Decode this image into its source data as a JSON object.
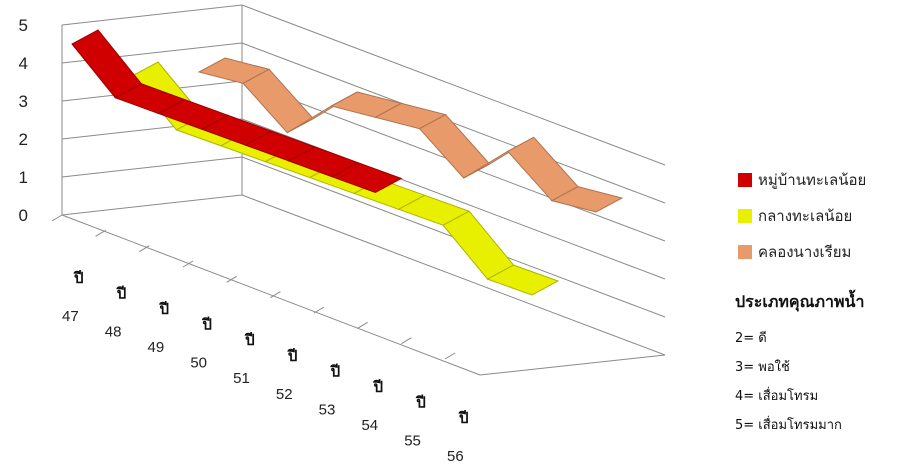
{
  "chart_data": {
    "type": "line",
    "variant": "3d-ribbon",
    "x_year_prefix": "ปี",
    "x": [
      "47",
      "48",
      "49",
      "50",
      "51",
      "52",
      "53",
      "54",
      "55",
      "56"
    ],
    "y_ticks": [
      "0",
      "1",
      "2",
      "3",
      "4",
      "5"
    ],
    "ylim": [
      0,
      5
    ],
    "grid": true,
    "legend_position": "right",
    "series": [
      {
        "name": "หมู่บ้านทะเลน้อย",
        "color": "#d00000",
        "values": [
          5,
          4,
          4,
          4,
          4,
          4,
          4,
          4,
          null,
          null
        ]
      },
      {
        "name": "กลางทะเลน้อย",
        "color": "#e8f000",
        "values": [
          4,
          3,
          3,
          3,
          3,
          3,
          3,
          3,
          2,
          2
        ]
      },
      {
        "name": "คลองนางเรียม",
        "color": "#e89a6a",
        "values": [
          4,
          4,
          3,
          4,
          4,
          4,
          3,
          4,
          3,
          3
        ]
      }
    ],
    "annotation": {
      "title": "ประเภทคุณภาพน้ำ",
      "items": [
        "2= ดี",
        "3= พอใช้",
        "4= เสื่อมโทรม",
        "5= เสื่อมโทรมมาก"
      ]
    }
  }
}
